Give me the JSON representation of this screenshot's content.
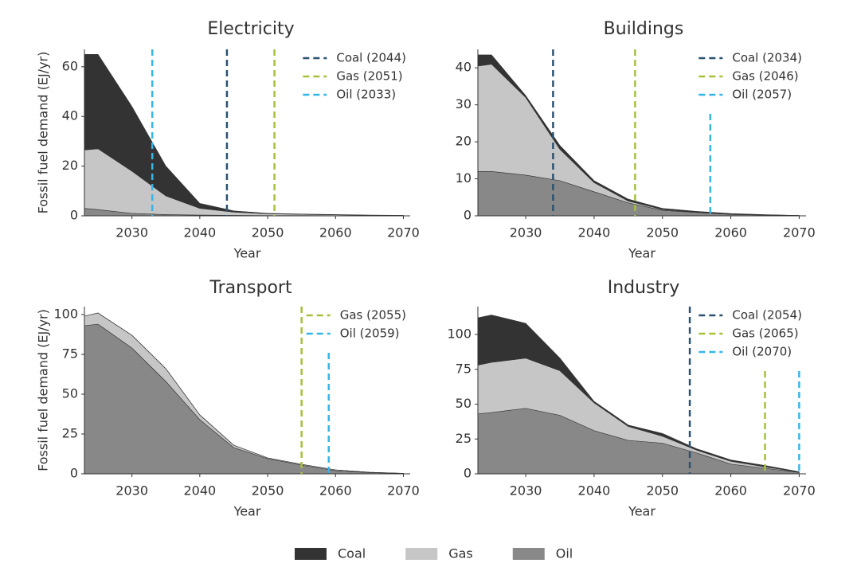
{
  "chart_data": [
    {
      "type": "stackedarea",
      "title": "Electricity",
      "xlabel": "Year",
      "ylabel": "Fossil fuel demand (EJ/yr)",
      "x": [
        2023,
        2025,
        2030,
        2035,
        2040,
        2045,
        2050,
        2055,
        2060,
        2065,
        2070
      ],
      "series": [
        {
          "name": "Oil",
          "color": "#888888",
          "values": [
            3,
            2.5,
            1,
            0.5,
            0.3,
            0.2,
            0.1,
            0.1,
            0.05,
            0.03,
            0.02
          ]
        },
        {
          "name": "Gas",
          "color": "#c6c6c6",
          "values": [
            23.5,
            24.5,
            17,
            7.5,
            2.7,
            1.3,
            0.7,
            0.5,
            0.35,
            0.2,
            0.1
          ]
        },
        {
          "name": "Coal",
          "color": "#333333",
          "values": [
            38.5,
            38,
            26,
            12,
            2,
            0.5,
            0.2,
            0.1,
            0.1,
            0.07,
            0.08
          ]
        }
      ],
      "vlines": [
        {
          "label": "Coal (2044)",
          "x": 2044,
          "color": "#2b5170"
        },
        {
          "label": "Gas (2051)",
          "x": 2051,
          "color": "#a4c13b"
        },
        {
          "label": "Oil (2033)",
          "x": 2033,
          "color": "#35b6e9"
        }
      ],
      "xlim": [
        2023,
        2071
      ],
      "xticks": [
        2030,
        2040,
        2050,
        2060,
        2070
      ],
      "ylim": [
        0,
        67
      ],
      "yticks": [
        0,
        20,
        40,
        60
      ]
    },
    {
      "type": "stackedarea",
      "title": "Buildings",
      "xlabel": "Year",
      "x": [
        2023,
        2025,
        2030,
        2035,
        2040,
        2045,
        2050,
        2055,
        2060,
        2065,
        2070
      ],
      "series": [
        {
          "name": "Oil",
          "color": "#888888",
          "values": [
            12,
            12,
            11,
            9.5,
            6.5,
            3.5,
            1.5,
            0.9,
            0.4,
            0.2,
            0.08
          ]
        },
        {
          "name": "Gas",
          "color": "#c6c6c6",
          "values": [
            28.5,
            29,
            21,
            8.5,
            2.5,
            0.5,
            0.2,
            0.1,
            0.1,
            0.05,
            0.02
          ]
        },
        {
          "name": "Coal",
          "color": "#333333",
          "values": [
            3,
            2.5,
            0.5,
            1,
            0.5,
            0.5,
            0.3,
            0.2,
            0.1,
            0.05,
            0
          ]
        }
      ],
      "vlines": [
        {
          "label": "Coal (2034)",
          "x": 2034,
          "color": "#2b5170"
        },
        {
          "label": "Gas (2046)",
          "x": 2046,
          "color": "#a4c13b"
        },
        {
          "label": "Oil (2057)",
          "x": 2057,
          "color": "#35b6e9"
        }
      ],
      "xlim": [
        2023,
        2071
      ],
      "xticks": [
        2030,
        2040,
        2050,
        2060,
        2070
      ],
      "ylim": [
        0,
        45
      ],
      "yticks": [
        0,
        10,
        20,
        30,
        40
      ]
    },
    {
      "type": "stackedarea",
      "title": "Transport",
      "xlabel": "Year",
      "ylabel": "Fossil fuel demand (EJ/yr)",
      "x": [
        2023,
        2025,
        2030,
        2035,
        2040,
        2045,
        2050,
        2055,
        2060,
        2065,
        2070
      ],
      "series": [
        {
          "name": "Oil",
          "color": "#888888",
          "values": [
            93,
            94,
            79,
            58,
            34,
            16.5,
            9.5,
            5.5,
            2,
            0.8,
            0.3
          ]
        },
        {
          "name": "Gas",
          "color": "#c6c6c6",
          "values": [
            6,
            7,
            8,
            8,
            3,
            1.5,
            0.5,
            0.5,
            0.5,
            0.2,
            0
          ]
        },
        {
          "name": "Coal",
          "color": "#333333",
          "values": [
            0,
            0,
            0,
            0,
            0,
            0,
            0,
            0,
            0,
            0,
            0
          ]
        }
      ],
      "vlines": [
        {
          "label": "Gas (2055)",
          "x": 2055,
          "color": "#a4c13b"
        },
        {
          "label": "Oil (2059)",
          "x": 2059,
          "color": "#35b6e9"
        }
      ],
      "xlim": [
        2023,
        2071
      ],
      "xticks": [
        2030,
        2040,
        2050,
        2060,
        2070
      ],
      "ylim": [
        0,
        105
      ],
      "yticks": [
        0,
        25,
        50,
        75,
        100
      ]
    },
    {
      "type": "stackedarea",
      "title": "Industry",
      "xlabel": "Year",
      "x": [
        2023,
        2025,
        2030,
        2035,
        2040,
        2045,
        2050,
        2055,
        2060,
        2065,
        2070
      ],
      "series": [
        {
          "name": "Oil",
          "color": "#888888",
          "values": [
            43,
            44,
            47,
            42,
            31,
            24,
            22,
            15,
            7,
            4,
            1
          ]
        },
        {
          "name": "Gas",
          "color": "#c6c6c6",
          "values": [
            35,
            36,
            36,
            32,
            20,
            10,
            5,
            2,
            2,
            1,
            0.2
          ]
        },
        {
          "name": "Coal",
          "color": "#333333",
          "values": [
            34,
            34,
            25,
            9,
            1,
            1,
            2,
            1,
            1,
            1,
            0.3
          ]
        }
      ],
      "vlines": [
        {
          "label": "Coal (2054)",
          "x": 2054,
          "color": "#2b5170"
        },
        {
          "label": "Gas (2065)",
          "x": 2065,
          "color": "#a4c13b"
        },
        {
          "label": "Oil (2070)",
          "x": 2070,
          "color": "#35b6e9"
        }
      ],
      "xlim": [
        2023,
        2071
      ],
      "xticks": [
        2030,
        2040,
        2050,
        2060,
        2070
      ],
      "ylim": [
        0,
        120
      ],
      "yticks": [
        0,
        25,
        50,
        75,
        100
      ]
    }
  ]
}
